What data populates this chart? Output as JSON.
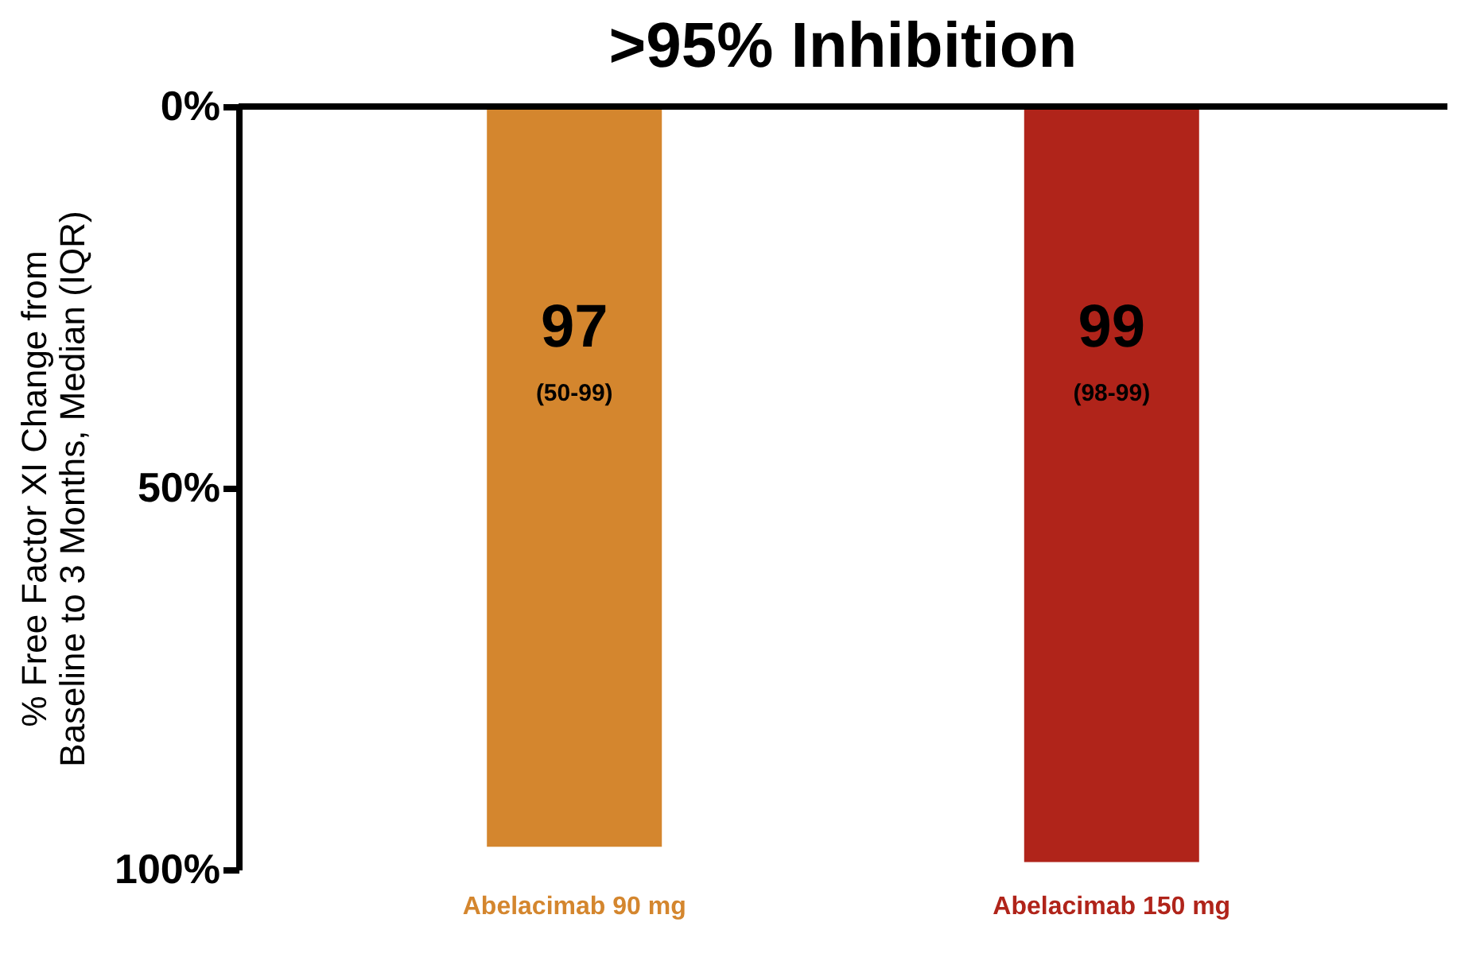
{
  "chart_data": {
    "type": "bar",
    "title": ">95% Inhibition",
    "ylabel": "% Free Factor XI Change from\nBaseline to 3 Months, Median (IQR)",
    "categories": [
      "Abelacimab 90 mg",
      "Abelacimab 150 mg"
    ],
    "values": [
      97,
      99
    ],
    "colors": [
      "#d4862e",
      "#b0241a"
    ],
    "data_labels": true,
    "annotations": [
      "(50-99)",
      "(98-99)"
    ],
    "ylim": [
      100,
      0
    ],
    "yticks": [
      {
        "value": 0,
        "label": "0%"
      },
      {
        "value": 50,
        "label": "50%"
      },
      {
        "value": 100,
        "label": "100%"
      }
    ],
    "grid": false
  }
}
